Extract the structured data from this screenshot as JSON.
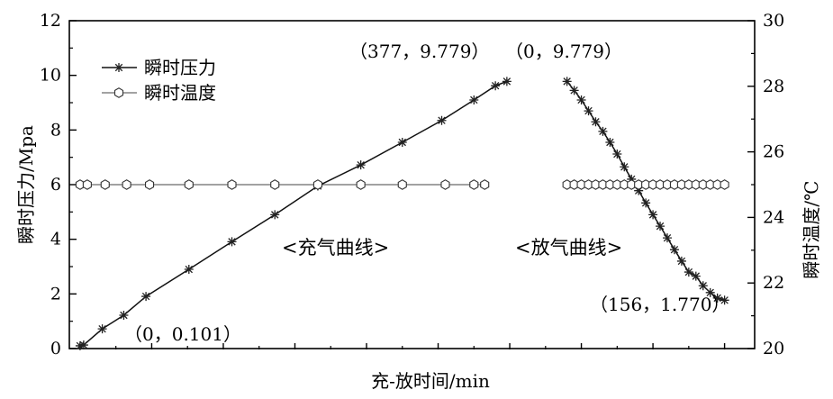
{
  "chart_data": {
    "type": "line",
    "xlabel": "充-放时间/min",
    "ylabel_left": "瞬时压力/Mpa",
    "ylabel_right": "瞬时温度/℃",
    "ylim_left": [
      0,
      12
    ],
    "ylim_right": [
      20,
      30
    ],
    "yticks_left": [
      0,
      2,
      4,
      6,
      8,
      10,
      12
    ],
    "yticks_right": [
      20,
      22,
      24,
      26,
      28,
      30
    ],
    "x_tick_labels_shown": false,
    "legend": {
      "position": "top-left",
      "entries": [
        {
          "label": "瞬时压力",
          "marker": "star"
        },
        {
          "label": "瞬时温度",
          "marker": "hexagon"
        }
      ]
    },
    "curve_labels": [
      "<充气曲线>",
      "<放气曲线>"
    ],
    "annotations": [
      "（0，0.101）",
      "（377，9.779）",
      "（0，9.779）",
      "（156，1.770）"
    ],
    "series": [
      {
        "name": "瞬时压力",
        "segment": "充气",
        "axis": "left",
        "marker": "star",
        "x": [
          0,
          5,
          31,
          61,
          92,
          152,
          212,
          272,
          332,
          392,
          450,
          505,
          550,
          580,
          596
        ],
        "y": [
          0.101,
          0.13,
          0.72,
          1.22,
          1.91,
          2.9,
          3.91,
          4.9,
          5.95,
          6.72,
          7.55,
          8.35,
          9.1,
          9.62,
          9.779
        ]
      },
      {
        "name": "瞬时温度",
        "segment": "充气",
        "axis": "right",
        "marker": "hexagon",
        "x": [
          0,
          10,
          35,
          65,
          97,
          152,
          212,
          272,
          332,
          392,
          450,
          510,
          550,
          565
        ],
        "y": [
          25.0,
          25.0,
          25.0,
          25.0,
          25.0,
          25.0,
          25.0,
          25.0,
          25.0,
          25.0,
          25.0,
          25.0,
          25.0,
          25.0
        ]
      },
      {
        "name": "瞬时压力",
        "segment": "放气",
        "axis": "left",
        "marker": "star",
        "x": [
          680,
          690,
          700,
          710,
          720,
          730,
          740,
          750,
          760,
          770,
          780,
          790,
          800,
          810,
          820,
          830,
          840,
          850,
          860,
          870,
          880,
          890,
          900
        ],
        "y": [
          9.779,
          9.45,
          9.1,
          8.7,
          8.3,
          7.95,
          7.55,
          7.12,
          6.65,
          6.2,
          5.78,
          5.33,
          4.9,
          4.48,
          4.05,
          3.62,
          3.2,
          2.8,
          2.65,
          2.3,
          2.05,
          1.85,
          1.77
        ]
      },
      {
        "name": "瞬时温度",
        "segment": "放气",
        "axis": "right",
        "marker": "hexagon",
        "x": [
          680,
          690,
          700,
          710,
          720,
          730,
          740,
          750,
          760,
          770,
          780,
          790,
          800,
          810,
          820,
          830,
          840,
          850,
          860,
          870,
          880,
          890,
          900
        ],
        "y": [
          25.0,
          25.0,
          25.0,
          25.0,
          25.0,
          25.0,
          25.0,
          25.0,
          25.0,
          25.0,
          25.0,
          25.0,
          25.0,
          25.0,
          25.0,
          25.0,
          25.0,
          25.0,
          25.0,
          25.0,
          25.0,
          25.0,
          25.0
        ]
      }
    ]
  }
}
